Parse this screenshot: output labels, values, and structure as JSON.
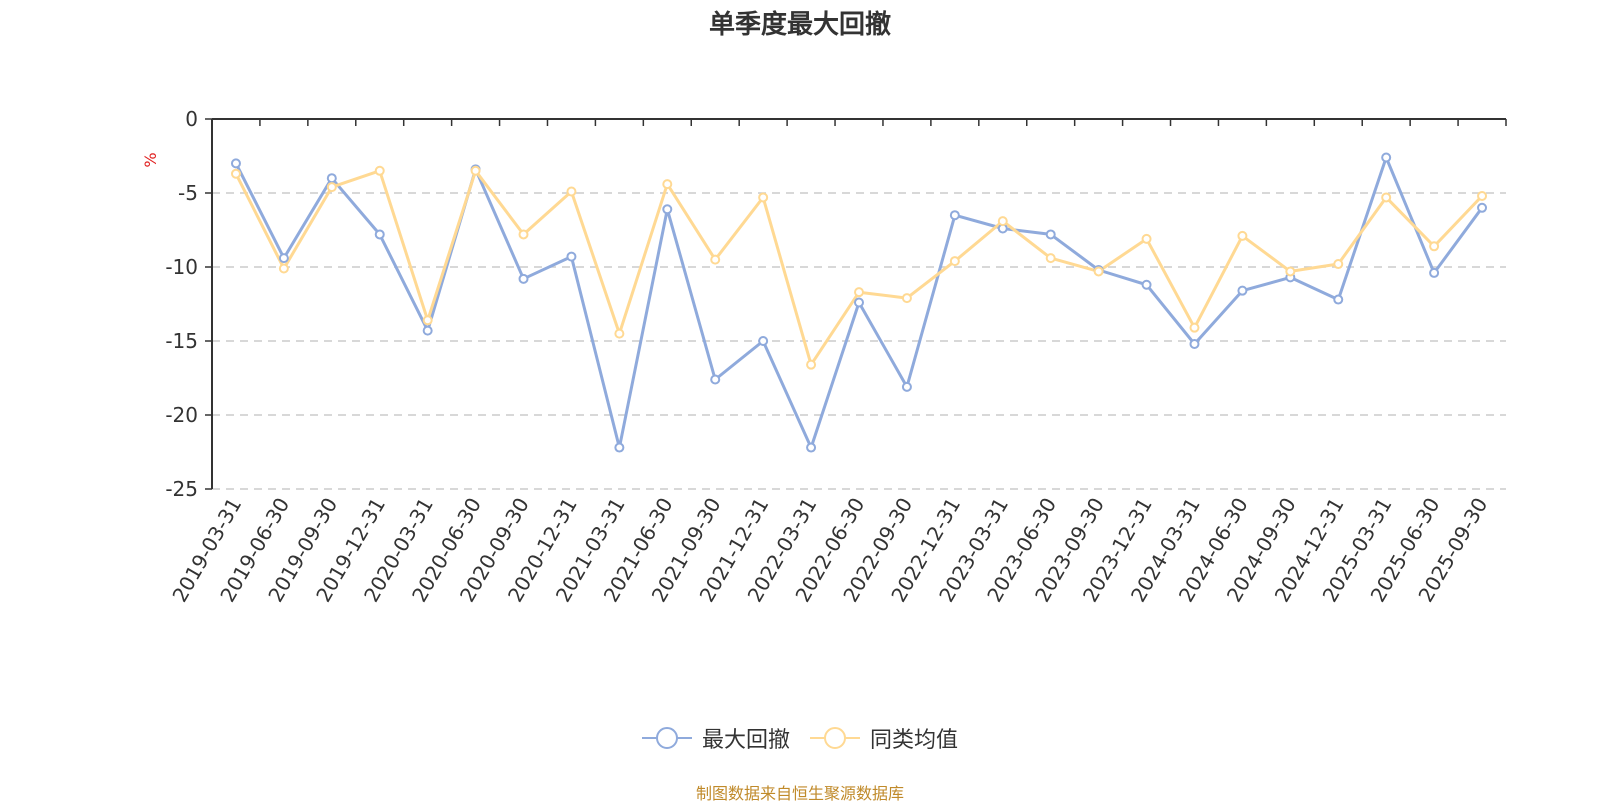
{
  "title": "单季度最大回撤",
  "source_note": "制图数据来自恒生聚源数据库",
  "colors": {
    "series_1": "#8faadc",
    "series_2": "#ffd993",
    "axis": "#333333",
    "grid": "#cccccc",
    "unit": "#e02020"
  },
  "chart_data": {
    "type": "line",
    "title": "单季度最大回撤",
    "xlabel": "",
    "ylabel": "%",
    "ylim": [
      -25,
      0
    ],
    "yticks": [
      0,
      -5,
      -10,
      -15,
      -20,
      -25
    ],
    "grid": true,
    "legend_position": "bottom-center",
    "categories": [
      "2019-03-31",
      "2019-06-30",
      "2019-09-30",
      "2019-12-31",
      "2020-03-31",
      "2020-06-30",
      "2020-09-30",
      "2020-12-31",
      "2021-03-31",
      "2021-06-30",
      "2021-09-30",
      "2021-12-31",
      "2022-03-31",
      "2022-06-30",
      "2022-09-30",
      "2022-12-31",
      "2023-03-31",
      "2023-06-30",
      "2023-09-30",
      "2023-12-31",
      "2024-03-31",
      "2024-06-30",
      "2024-09-30",
      "2024-12-31",
      "2025-03-31",
      "2025-06-30",
      "2025-09-30"
    ],
    "series": [
      {
        "name": "最大回撤",
        "values": [
          -3.0,
          -9.4,
          -4.0,
          -7.8,
          -14.3,
          -3.4,
          -10.8,
          -9.3,
          -22.2,
          -6.1,
          -17.6,
          -15.0,
          -22.2,
          -12.4,
          -18.1,
          -6.5,
          -7.4,
          -7.8,
          -10.2,
          -11.2,
          -15.2,
          -11.6,
          -10.7,
          -12.2,
          -2.6,
          -10.4,
          -6.0
        ]
      },
      {
        "name": "同类均值",
        "values": [
          -3.7,
          -10.1,
          -4.6,
          -3.5,
          -13.6,
          -3.5,
          -7.8,
          -4.9,
          -14.5,
          -4.4,
          -9.5,
          -5.3,
          -16.6,
          -11.7,
          -12.1,
          -9.6,
          -6.9,
          -9.4,
          -10.3,
          -8.1,
          -14.1,
          -7.9,
          -10.3,
          -9.8,
          -5.3,
          -8.6,
          -5.2
        ]
      }
    ]
  }
}
